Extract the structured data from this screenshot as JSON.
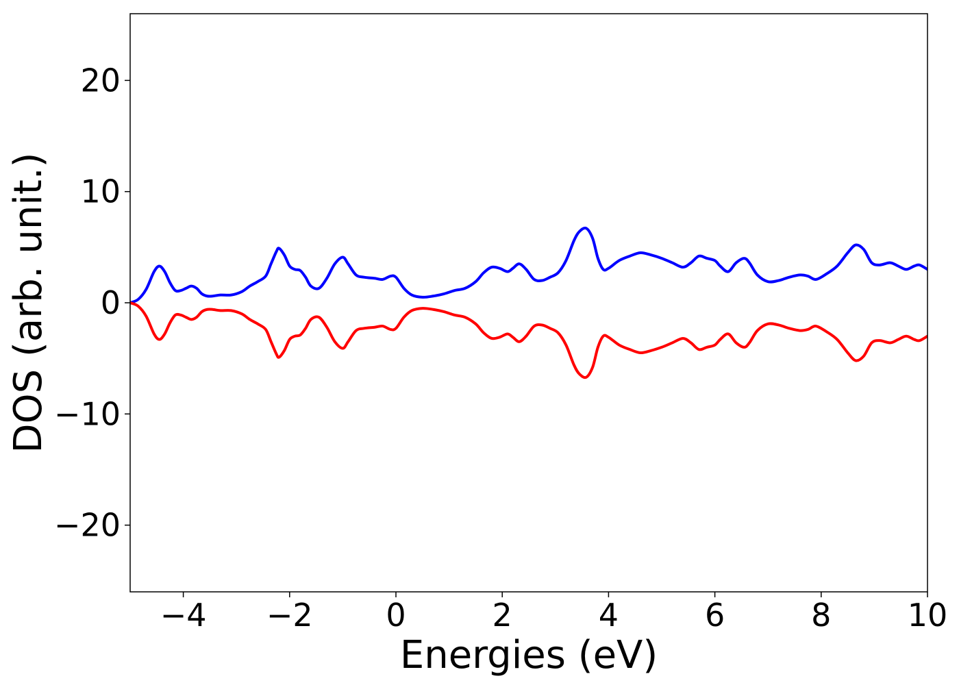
{
  "chart_data": {
    "type": "line",
    "title": "",
    "xlabel": "Energies (eV)",
    "ylabel": "DOS (arb. unit.)",
    "xlim": [
      -5,
      10
    ],
    "ylim": [
      -26,
      26
    ],
    "xticks": [
      -4,
      -2,
      0,
      2,
      4,
      6,
      8,
      10
    ],
    "xtick_labels": [
      "−4",
      "−2",
      "0",
      "2",
      "4",
      "6",
      "8",
      "10"
    ],
    "yticks": [
      -20,
      -10,
      0,
      10,
      20
    ],
    "ytick_labels": [
      "−20",
      "−10",
      "0",
      "10",
      "20"
    ],
    "grid": false,
    "colors": {
      "spin_up": "#0000ff",
      "spin_down": "#ff0000",
      "axes": "#000000"
    },
    "series": [
      {
        "color": "#0000ff",
        "x": [
          -5.0,
          -4.85,
          -4.7,
          -4.55,
          -4.45,
          -4.35,
          -4.25,
          -4.15,
          -4.05,
          -3.95,
          -3.85,
          -3.75,
          -3.65,
          -3.55,
          -3.45,
          -3.3,
          -3.1,
          -2.9,
          -2.75,
          -2.6,
          -2.45,
          -2.35,
          -2.25,
          -2.2,
          -2.1,
          -2.0,
          -1.9,
          -1.8,
          -1.7,
          -1.6,
          -1.45,
          -1.3,
          -1.15,
          -1.0,
          -0.9,
          -0.75,
          -0.6,
          -0.4,
          -0.25,
          -0.1,
          0.0,
          0.15,
          0.3,
          0.5,
          0.7,
          0.9,
          1.1,
          1.3,
          1.5,
          1.65,
          1.8,
          1.95,
          2.1,
          2.2,
          2.32,
          2.45,
          2.6,
          2.75,
          2.9,
          3.05,
          3.2,
          3.35,
          3.45,
          3.58,
          3.7,
          3.8,
          3.9,
          4.0,
          4.2,
          4.4,
          4.6,
          4.8,
          5.0,
          5.2,
          5.4,
          5.55,
          5.7,
          5.85,
          6.0,
          6.1,
          6.25,
          6.4,
          6.55,
          6.65,
          6.8,
          7.0,
          7.2,
          7.4,
          7.6,
          7.75,
          7.9,
          8.1,
          8.3,
          8.5,
          8.65,
          8.8,
          8.95,
          9.1,
          9.3,
          9.45,
          9.6,
          9.75,
          9.85,
          10.0
        ],
        "y": [
          0.0,
          0.3,
          1.2,
          2.8,
          3.3,
          2.8,
          1.8,
          1.1,
          1.1,
          1.3,
          1.5,
          1.3,
          0.8,
          0.6,
          0.6,
          0.7,
          0.7,
          1.0,
          1.5,
          1.9,
          2.4,
          3.5,
          4.6,
          4.9,
          4.3,
          3.3,
          3.0,
          2.9,
          2.3,
          1.5,
          1.3,
          2.2,
          3.5,
          4.1,
          3.5,
          2.5,
          2.3,
          2.2,
          2.1,
          2.4,
          2.3,
          1.3,
          0.7,
          0.5,
          0.6,
          0.8,
          1.1,
          1.3,
          1.9,
          2.7,
          3.2,
          3.1,
          2.8,
          3.1,
          3.5,
          3.0,
          2.1,
          2.0,
          2.3,
          2.7,
          3.8,
          5.6,
          6.4,
          6.7,
          5.8,
          4.0,
          3.0,
          3.1,
          3.8,
          4.2,
          4.5,
          4.3,
          4.0,
          3.6,
          3.2,
          3.6,
          4.2,
          4.0,
          3.8,
          3.3,
          2.8,
          3.6,
          4.0,
          3.6,
          2.5,
          1.9,
          2.0,
          2.3,
          2.5,
          2.4,
          2.1,
          2.6,
          3.3,
          4.5,
          5.2,
          4.8,
          3.6,
          3.4,
          3.6,
          3.3,
          3.0,
          3.3,
          3.4,
          3.0
        ]
      },
      {
        "color": "#ff0000",
        "x": [
          -5.0,
          -4.85,
          -4.7,
          -4.55,
          -4.45,
          -4.35,
          -4.25,
          -4.15,
          -4.05,
          -3.95,
          -3.85,
          -3.75,
          -3.65,
          -3.55,
          -3.45,
          -3.3,
          -3.1,
          -2.9,
          -2.75,
          -2.6,
          -2.45,
          -2.35,
          -2.25,
          -2.2,
          -2.1,
          -2.0,
          -1.9,
          -1.8,
          -1.7,
          -1.6,
          -1.45,
          -1.3,
          -1.15,
          -1.0,
          -0.9,
          -0.75,
          -0.6,
          -0.4,
          -0.25,
          -0.1,
          0.0,
          0.15,
          0.3,
          0.5,
          0.7,
          0.9,
          1.1,
          1.3,
          1.5,
          1.65,
          1.8,
          1.95,
          2.1,
          2.2,
          2.32,
          2.45,
          2.6,
          2.75,
          2.9,
          3.05,
          3.2,
          3.35,
          3.45,
          3.58,
          3.7,
          3.8,
          3.9,
          4.0,
          4.2,
          4.4,
          4.6,
          4.8,
          5.0,
          5.2,
          5.4,
          5.55,
          5.7,
          5.85,
          6.0,
          6.1,
          6.25,
          6.4,
          6.55,
          6.65,
          6.8,
          7.0,
          7.2,
          7.4,
          7.6,
          7.75,
          7.9,
          8.1,
          8.3,
          8.5,
          8.65,
          8.8,
          8.95,
          9.1,
          9.3,
          9.45,
          9.6,
          9.75,
          9.85,
          10.0
        ],
        "y": [
          0.0,
          -0.3,
          -1.2,
          -2.8,
          -3.3,
          -2.8,
          -1.8,
          -1.1,
          -1.1,
          -1.3,
          -1.5,
          -1.3,
          -0.8,
          -0.6,
          -0.6,
          -0.7,
          -0.7,
          -1.0,
          -1.5,
          -1.9,
          -2.4,
          -3.5,
          -4.6,
          -4.9,
          -4.3,
          -3.3,
          -3.0,
          -2.9,
          -2.3,
          -1.5,
          -1.3,
          -2.2,
          -3.5,
          -4.1,
          -3.5,
          -2.5,
          -2.3,
          -2.2,
          -2.1,
          -2.4,
          -2.3,
          -1.3,
          -0.7,
          -0.5,
          -0.6,
          -0.8,
          -1.1,
          -1.3,
          -1.9,
          -2.7,
          -3.2,
          -3.1,
          -2.8,
          -3.1,
          -3.5,
          -3.0,
          -2.1,
          -2.0,
          -2.3,
          -2.7,
          -3.8,
          -5.6,
          -6.4,
          -6.7,
          -5.8,
          -4.0,
          -3.0,
          -3.1,
          -3.8,
          -4.2,
          -4.5,
          -4.3,
          -4.0,
          -3.6,
          -3.2,
          -3.6,
          -4.2,
          -4.0,
          -3.8,
          -3.3,
          -2.8,
          -3.6,
          -4.0,
          -3.6,
          -2.5,
          -1.9,
          -2.0,
          -2.3,
          -2.5,
          -2.4,
          -2.1,
          -2.6,
          -3.3,
          -4.5,
          -5.2,
          -4.8,
          -3.6,
          -3.4,
          -3.6,
          -3.3,
          -3.0,
          -3.3,
          -3.4,
          -3.0
        ]
      }
    ]
  }
}
